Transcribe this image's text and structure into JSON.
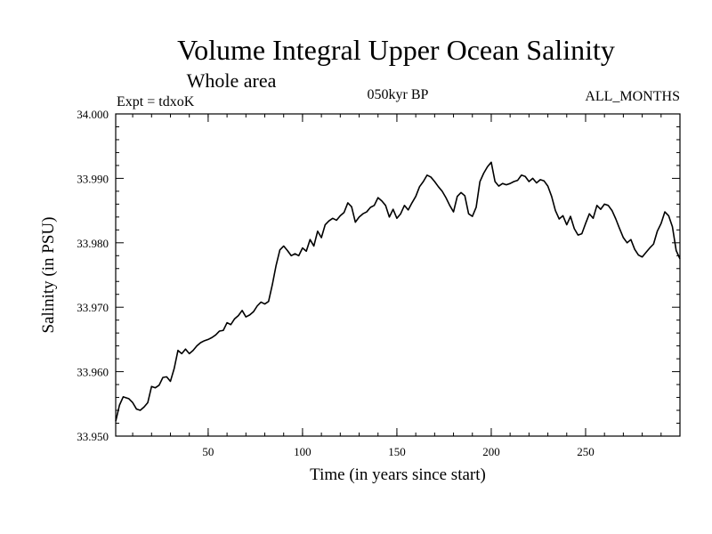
{
  "chart_data": {
    "type": "line",
    "title": "Volume Integral Upper Ocean Salinity",
    "subtitle": "Whole area",
    "annotations": {
      "left": "Expt = tdxoK",
      "center": "050kyr BP",
      "right": "ALL_MONTHS"
    },
    "xlabel": "Time (in years since start)",
    "ylabel": "Salinity (in PSU)",
    "xlim": [
      1,
      300
    ],
    "ylim": [
      33.95,
      34.0
    ],
    "xticks": [
      50,
      100,
      150,
      200,
      250
    ],
    "xtick_labels": [
      "50",
      "100",
      "150",
      "200",
      "250"
    ],
    "yticks": [
      33.95,
      33.96,
      33.97,
      33.98,
      33.99,
      34.0
    ],
    "ytick_labels": [
      "33.950",
      "33.960",
      "33.970",
      "33.980",
      "33.990",
      "34.000"
    ],
    "grid": false,
    "series": [
      {
        "color": "#000000",
        "x": [
          1,
          3,
          5,
          8,
          10,
          12,
          14,
          16,
          18,
          20,
          22,
          24,
          26,
          28,
          30,
          32,
          34,
          36,
          38,
          40,
          42,
          44,
          46,
          48,
          50,
          52,
          54,
          56,
          58,
          60,
          62,
          64,
          66,
          68,
          70,
          72,
          74,
          76,
          78,
          80,
          82,
          84,
          86,
          88,
          90,
          92,
          94,
          96,
          98,
          100,
          102,
          104,
          106,
          108,
          110,
          112,
          114,
          116,
          118,
          120,
          122,
          124,
          126,
          128,
          130,
          132,
          134,
          136,
          138,
          140,
          142,
          144,
          146,
          148,
          150,
          152,
          154,
          156,
          158,
          160,
          162,
          164,
          166,
          168,
          170,
          172,
          174,
          176,
          178,
          180,
          182,
          184,
          186,
          188,
          190,
          192,
          194,
          196,
          198,
          200,
          202,
          204,
          206,
          208,
          210,
          212,
          214,
          216,
          218,
          220,
          222,
          224,
          226,
          228,
          230,
          232,
          234,
          236,
          238,
          240,
          242,
          244,
          246,
          248,
          250,
          252,
          254,
          256,
          258,
          260,
          262,
          264,
          266,
          268,
          270,
          272,
          274,
          276,
          278,
          280,
          282,
          284,
          286,
          288,
          290,
          292,
          294,
          296,
          298,
          300
        ],
        "values": [
          33.9523,
          33.9548,
          33.9561,
          33.9558,
          33.9552,
          33.9542,
          33.954,
          33.9545,
          33.9552,
          33.9577,
          33.9575,
          33.9579,
          33.9591,
          33.9592,
          33.9585,
          33.9605,
          33.9633,
          33.9628,
          33.9635,
          33.9628,
          33.9633,
          33.964,
          33.9645,
          33.9648,
          33.965,
          33.9653,
          33.9657,
          33.9663,
          33.9664,
          33.9676,
          33.9673,
          33.9682,
          33.9687,
          33.9695,
          33.9685,
          33.9688,
          33.9693,
          33.9702,
          33.9708,
          33.9705,
          33.9709,
          33.9735,
          33.9765,
          33.9789,
          33.9795,
          33.9788,
          33.978,
          33.9783,
          33.978,
          33.9792,
          33.9787,
          33.9805,
          33.9795,
          33.9818,
          33.9808,
          33.9828,
          33.9834,
          33.9838,
          33.9835,
          33.9842,
          33.9847,
          33.9862,
          33.9856,
          33.9832,
          33.984,
          33.9845,
          33.9848,
          33.9855,
          33.9858,
          33.987,
          33.9865,
          33.9858,
          33.984,
          33.9852,
          33.9838,
          33.9845,
          33.9858,
          33.9851,
          33.9862,
          33.9872,
          33.9887,
          33.9895,
          33.9905,
          33.9902,
          33.9895,
          33.9887,
          33.988,
          33.987,
          33.9858,
          33.9848,
          33.9872,
          33.9878,
          33.9873,
          33.9845,
          33.9841,
          33.9855,
          33.9895,
          33.9908,
          33.9918,
          33.9925,
          33.9895,
          33.9888,
          33.9892,
          33.989,
          33.9892,
          33.9895,
          33.9897,
          33.9905,
          33.9903,
          33.9895,
          33.99,
          33.9893,
          33.9898,
          33.9896,
          33.9888,
          33.9872,
          33.985,
          33.9837,
          33.9842,
          33.9828,
          33.9841,
          33.9822,
          33.9812,
          33.9814,
          33.983,
          33.9845,
          33.9838,
          33.9858,
          33.9852,
          33.986,
          33.9858,
          33.985,
          33.9837,
          33.9822,
          33.9808,
          33.98,
          33.9805,
          33.979,
          33.9781,
          33.9778,
          33.9785,
          33.9792,
          33.9798,
          33.9818,
          33.983,
          33.9848,
          33.9842,
          33.9825,
          33.9788,
          33.9775
        ]
      }
    ]
  }
}
